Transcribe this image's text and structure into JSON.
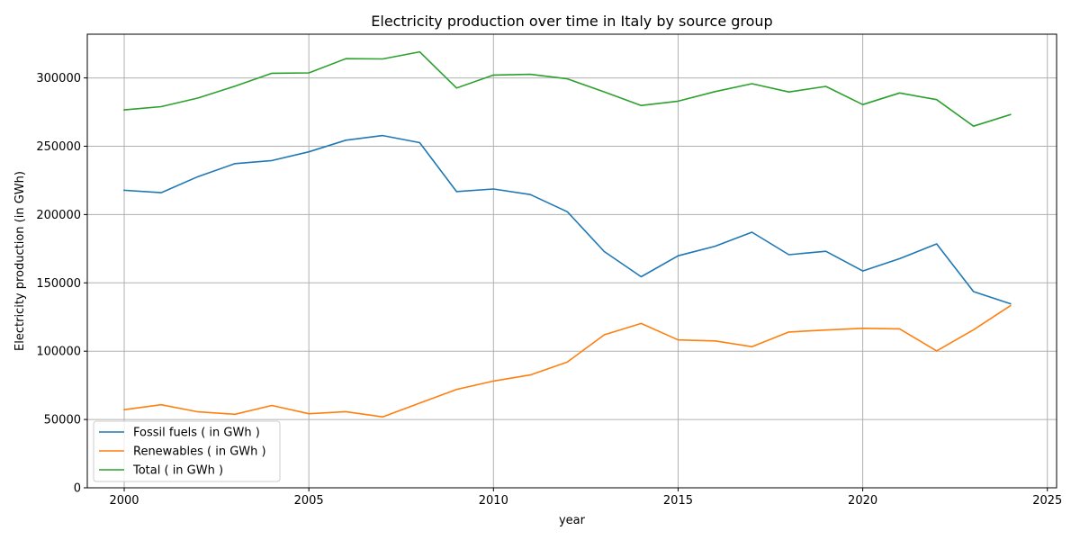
{
  "chart_data": {
    "type": "line",
    "title": "Electricity production over time in Italy by source group",
    "xlabel": "year",
    "ylabel": "Electricity production (in GWh)",
    "xlim": [
      1999,
      2025.25
    ],
    "ylim": [
      0,
      332000
    ],
    "grid": true,
    "legend_position": "lower-left",
    "x_ticks": [
      2000,
      2005,
      2010,
      2015,
      2020,
      2025
    ],
    "y_ticks": [
      0,
      50000,
      100000,
      150000,
      200000,
      250000,
      300000
    ],
    "x_tick_labels": [
      "2000",
      "2005",
      "2010",
      "2015",
      "2020",
      "2025"
    ],
    "y_tick_labels": [
      "0",
      "50000",
      "100000",
      "150000",
      "200000",
      "250000",
      "300000"
    ],
    "x": [
      2000,
      2001,
      2002,
      2003,
      2004,
      2005,
      2006,
      2007,
      2008,
      2009,
      2010,
      2011,
      2012,
      2013,
      2014,
      2015,
      2016,
      2017,
      2018,
      2019,
      2020,
      2021,
      2022,
      2023,
      2024
    ],
    "series": [
      {
        "name": "Fossil fuels ( in GWh )",
        "color": "#1f77b4",
        "values": [
          217800,
          216000,
          227800,
          237300,
          239500,
          245900,
          254400,
          257800,
          252600,
          216800,
          218700,
          214600,
          202000,
          172900,
          154500,
          169800,
          176800,
          187100,
          170600,
          173100,
          158700,
          167700,
          178500,
          143600,
          134700
        ]
      },
      {
        "name": "Renewables ( in GWh )",
        "color": "#ff7f0e",
        "values": [
          57200,
          60800,
          55600,
          53800,
          60300,
          54200,
          55700,
          51900,
          62000,
          72000,
          78100,
          82600,
          92100,
          112000,
          120300,
          108200,
          107500,
          103300,
          114000,
          115500,
          116700,
          116300,
          100200,
          115700,
          133300
        ]
      },
      {
        "name": "Total ( in GWh )",
        "color": "#2ca02c",
        "values": [
          276600,
          279000,
          285300,
          294000,
          303400,
          303700,
          314100,
          313900,
          319100,
          292600,
          302100,
          302600,
          299300,
          289800,
          279800,
          283000,
          290000,
          295800,
          289700,
          293800,
          280500,
          289000,
          284100,
          264700,
          273200
        ]
      }
    ]
  }
}
